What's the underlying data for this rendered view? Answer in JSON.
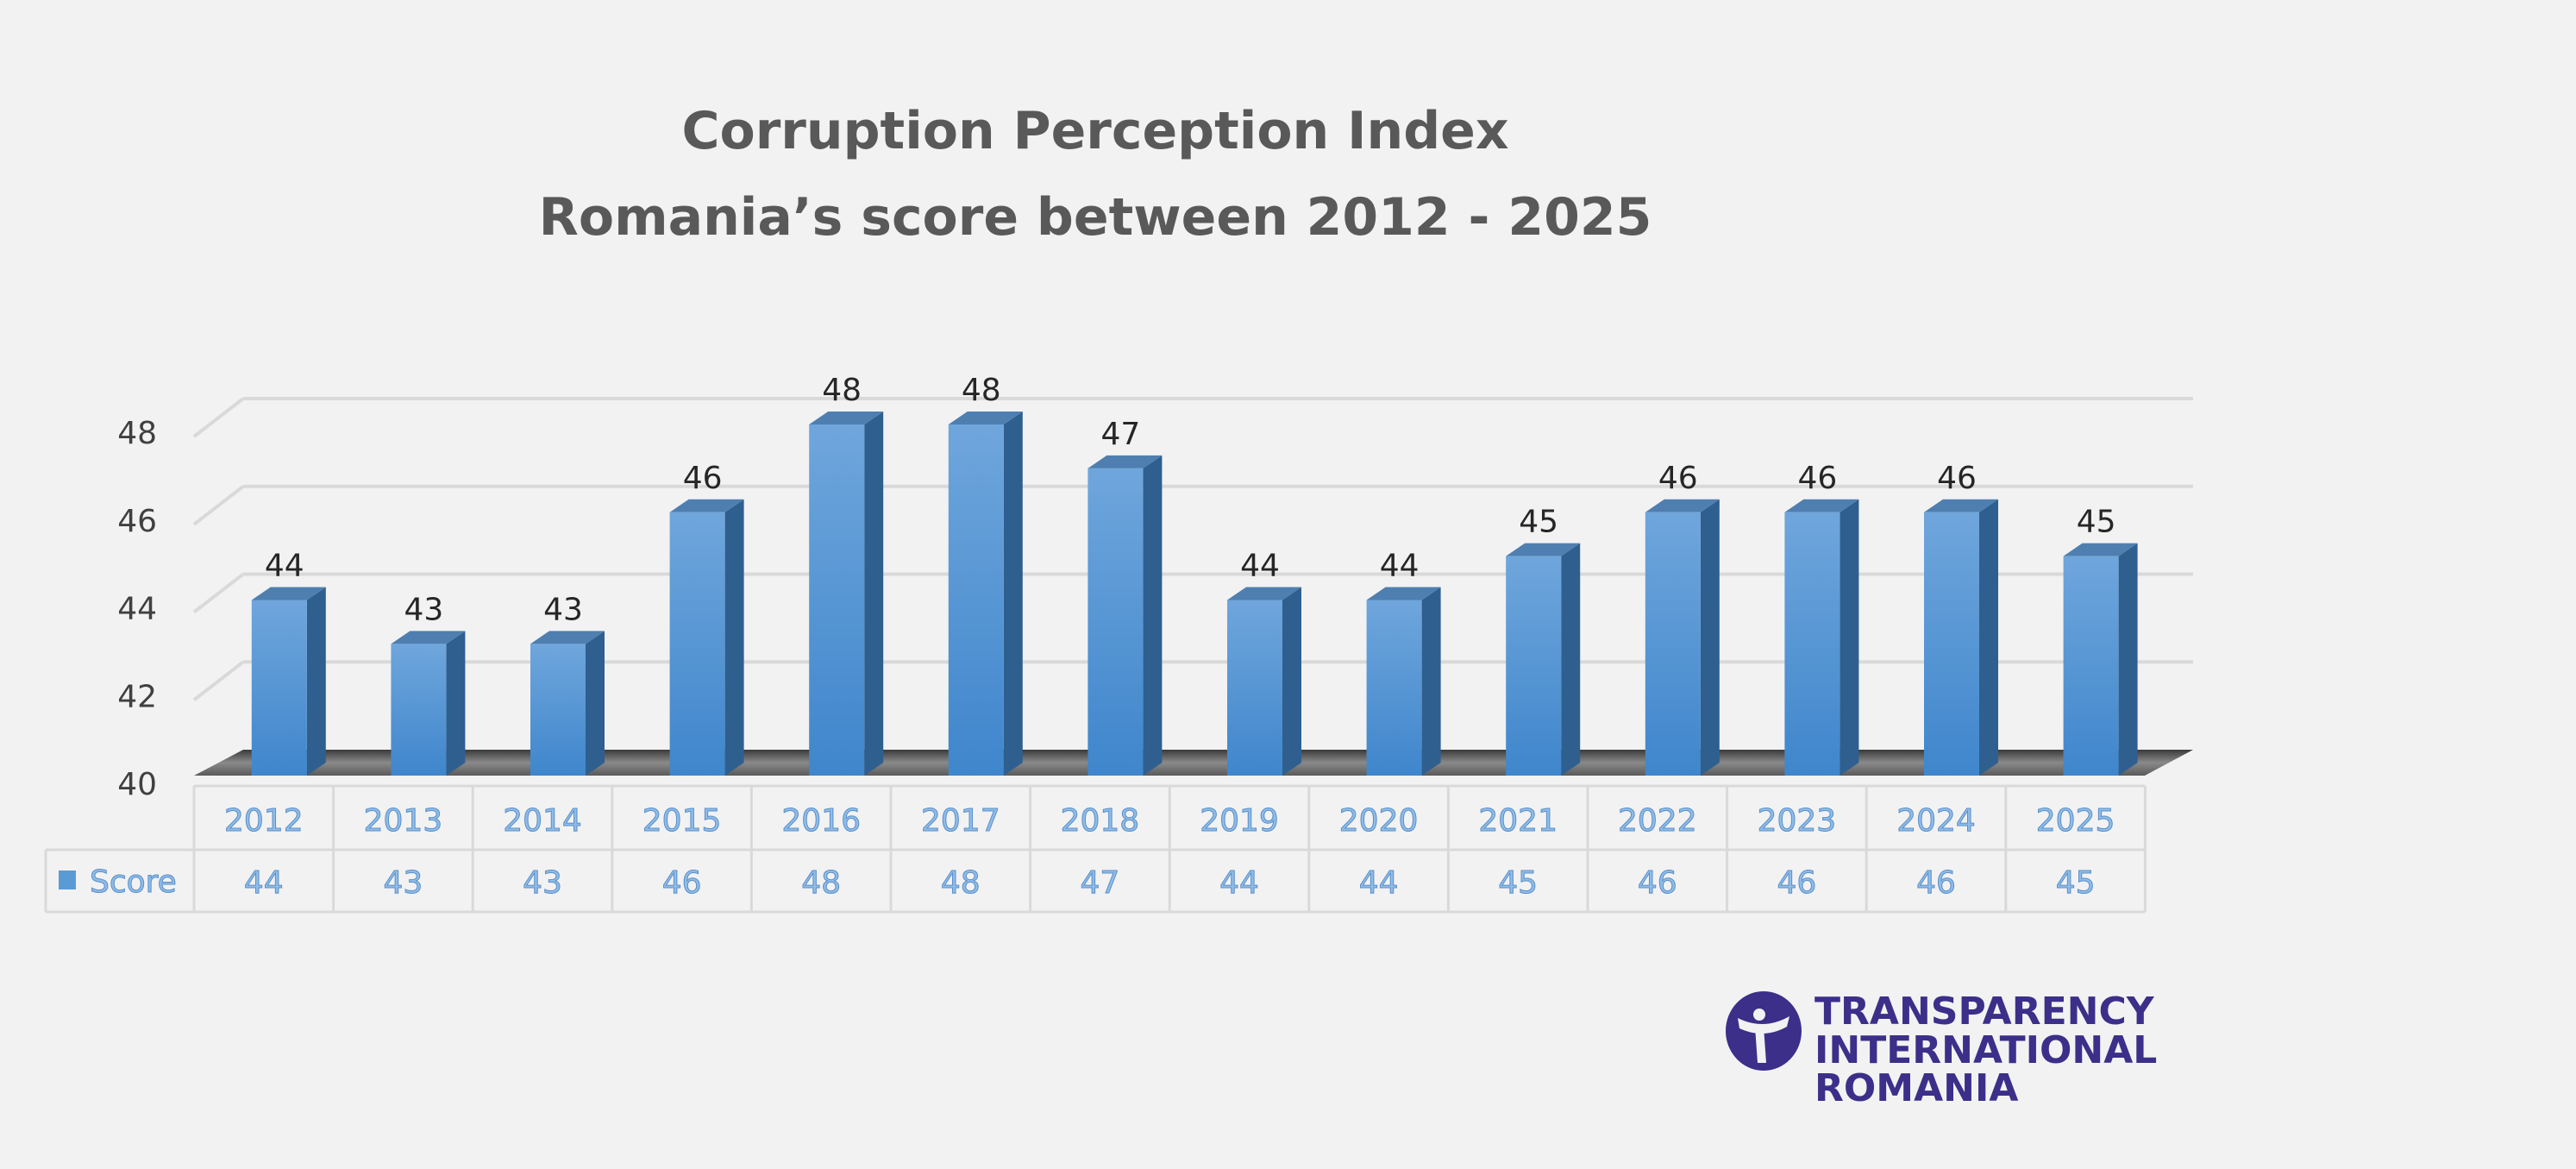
{
  "chart_data": {
    "type": "bar",
    "title": "Corruption Perception Index",
    "subtitle": "Romania’s score between 2012 - 2025",
    "categories": [
      "2012",
      "2013",
      "2014",
      "2015",
      "2016",
      "2017",
      "2018",
      "2019",
      "2020",
      "2021",
      "2022",
      "2023",
      "2024",
      "2025"
    ],
    "series": [
      {
        "name": "Score",
        "values": [
          44,
          43,
          43,
          46,
          48,
          48,
          47,
          44,
          44,
          45,
          46,
          46,
          46,
          45
        ]
      }
    ],
    "ylim": [
      40,
      48
    ],
    "yticks": [
      40,
      42,
      44,
      46,
      48
    ],
    "xlabel": "",
    "ylabel": "",
    "grid": true,
    "legend": "data-table",
    "colors": {
      "bar": "#5b9bd5",
      "bar_side": "#2f5f8f",
      "bar_top": "#4f7fb0",
      "floor": "#5a5a5a"
    }
  },
  "logo": {
    "lines": [
      "TRANSPARENCY",
      "INTERNATIONAL",
      "ROMANIA"
    ],
    "color": "#3b2f8a"
  }
}
